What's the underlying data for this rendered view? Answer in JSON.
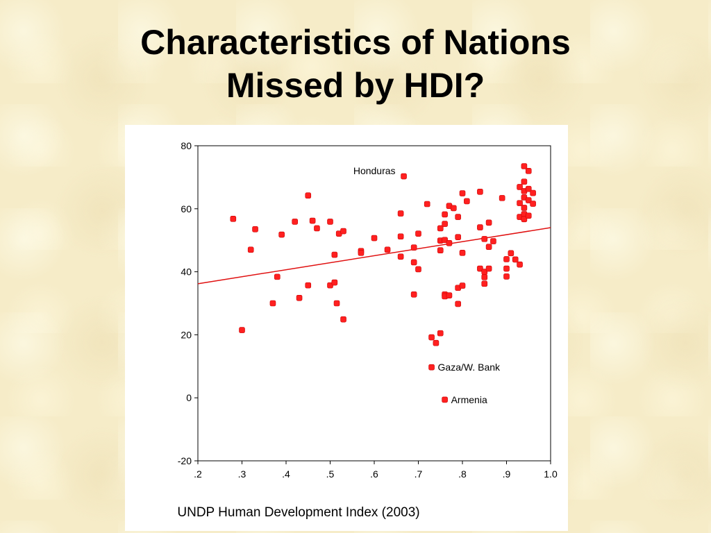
{
  "slide": {
    "title_line1": "Characteristics of Nations",
    "title_line2": "Missed by HDI?"
  },
  "colors": {
    "marker": "#ff2020",
    "fit_line": "#e01010",
    "axis": "#000000"
  },
  "chart_data": {
    "type": "scatter",
    "title": "",
    "xlabel": "UNDP Human Development Index (2003)",
    "ylabel": "",
    "xlim": [
      0.2,
      1.0
    ],
    "ylim": [
      -20,
      80
    ],
    "x_ticks": [
      0.2,
      0.3,
      0.4,
      0.5,
      0.6,
      0.7,
      0.8,
      0.9,
      1.0
    ],
    "x_tick_labels": [
      ".2",
      ".3",
      ".4",
      ".5",
      ".6",
      ".7",
      ".8",
      ".9",
      "1.0"
    ],
    "y_ticks": [
      80,
      60,
      40,
      20,
      0,
      -20
    ],
    "y_tick_labels": [
      "80",
      "60",
      "40",
      "20",
      "0",
      "-20"
    ],
    "grid": false,
    "fit_line": {
      "x": [
        0.2,
        1.0
      ],
      "y": [
        36.2,
        54.0
      ]
    },
    "annotations": [
      {
        "text": "Honduras",
        "x": 0.667,
        "y": 70.3,
        "side": "left"
      },
      {
        "text": "Gaza/W. Bank",
        "x": 0.73,
        "y": 9.7,
        "side": "right"
      },
      {
        "text": "Armenia",
        "x": 0.76,
        "y": -0.6,
        "side": "right"
      }
    ],
    "points": [
      [
        0.28,
        56.8
      ],
      [
        0.3,
        21.5
      ],
      [
        0.32,
        47.0
      ],
      [
        0.33,
        53.5
      ],
      [
        0.37,
        30.0
      ],
      [
        0.38,
        38.4
      ],
      [
        0.39,
        51.8
      ],
      [
        0.42,
        55.9
      ],
      [
        0.43,
        31.7
      ],
      [
        0.45,
        64.2
      ],
      [
        0.45,
        35.7
      ],
      [
        0.46,
        56.2
      ],
      [
        0.47,
        53.8
      ],
      [
        0.5,
        55.9
      ],
      [
        0.5,
        35.7
      ],
      [
        0.51,
        45.4
      ],
      [
        0.51,
        36.6
      ],
      [
        0.515,
        30.0
      ],
      [
        0.52,
        52.1
      ],
      [
        0.53,
        52.9
      ],
      [
        0.53,
        24.9
      ],
      [
        0.57,
        46.6
      ],
      [
        0.57,
        46.0
      ],
      [
        0.6,
        50.7
      ],
      [
        0.63,
        47.0
      ],
      [
        0.66,
        58.5
      ],
      [
        0.66,
        51.2
      ],
      [
        0.66,
        44.8
      ],
      [
        0.667,
        70.3
      ],
      [
        0.69,
        47.7
      ],
      [
        0.69,
        43.0
      ],
      [
        0.69,
        32.8
      ],
      [
        0.7,
        52.1
      ],
      [
        0.7,
        40.8
      ],
      [
        0.72,
        61.5
      ],
      [
        0.73,
        19.2
      ],
      [
        0.73,
        9.7
      ],
      [
        0.74,
        17.4
      ],
      [
        0.75,
        20.5
      ],
      [
        0.75,
        53.8
      ],
      [
        0.75,
        49.9
      ],
      [
        0.75,
        46.8
      ],
      [
        0.76,
        58.2
      ],
      [
        0.76,
        55.2
      ],
      [
        0.76,
        50.1
      ],
      [
        0.76,
        32.8
      ],
      [
        0.76,
        32.2
      ],
      [
        0.76,
        -0.6
      ],
      [
        0.77,
        60.9
      ],
      [
        0.77,
        49.1
      ],
      [
        0.77,
        32.5
      ],
      [
        0.78,
        60.2
      ],
      [
        0.79,
        57.4
      ],
      [
        0.79,
        51.0
      ],
      [
        0.79,
        34.9
      ],
      [
        0.79,
        29.8
      ],
      [
        0.8,
        64.9
      ],
      [
        0.8,
        46.0
      ],
      [
        0.8,
        35.6
      ],
      [
        0.81,
        62.4
      ],
      [
        0.84,
        65.4
      ],
      [
        0.84,
        54.1
      ],
      [
        0.84,
        41.0
      ],
      [
        0.85,
        50.4
      ],
      [
        0.85,
        40.0
      ],
      [
        0.85,
        38.3
      ],
      [
        0.85,
        36.2
      ],
      [
        0.86,
        55.6
      ],
      [
        0.86,
        47.9
      ],
      [
        0.86,
        41.0
      ],
      [
        0.87,
        49.7
      ],
      [
        0.89,
        63.4
      ],
      [
        0.9,
        44.0
      ],
      [
        0.9,
        41.0
      ],
      [
        0.9,
        38.5
      ],
      [
        0.91,
        45.9
      ],
      [
        0.92,
        43.9
      ],
      [
        0.93,
        66.9
      ],
      [
        0.93,
        61.8
      ],
      [
        0.93,
        57.4
      ],
      [
        0.93,
        42.3
      ],
      [
        0.94,
        73.5
      ],
      [
        0.94,
        68.6
      ],
      [
        0.94,
        65.6
      ],
      [
        0.94,
        63.6
      ],
      [
        0.94,
        60.3
      ],
      [
        0.94,
        58.3
      ],
      [
        0.94,
        56.7
      ],
      [
        0.95,
        72.0
      ],
      [
        0.95,
        66.3
      ],
      [
        0.95,
        62.7
      ],
      [
        0.95,
        57.8
      ],
      [
        0.96,
        65.0
      ],
      [
        0.96,
        61.6
      ]
    ]
  }
}
